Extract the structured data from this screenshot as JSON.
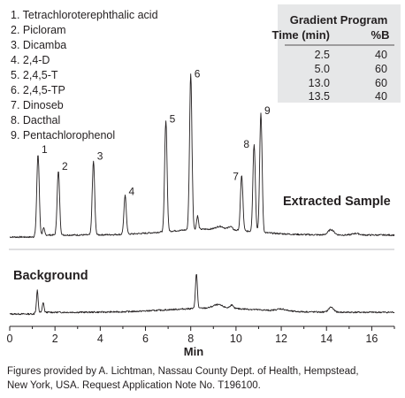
{
  "chart_data": {
    "type": "line",
    "xlabel": "Min",
    "xlim": [
      0,
      17
    ],
    "xticks": [
      "0",
      "2",
      "4",
      "6",
      "8",
      "10",
      "12",
      "14",
      "16"
    ],
    "legend": [
      "1. Tetrachloroterephthalic acid",
      "2. Picloram",
      "3. Dicamba",
      "4. 2,4-D",
      "5. 2,4,5-T",
      "6. 2,4,5-TP",
      "7. Dinoseb",
      "8. Dacthal",
      "9. Pentachlorophenol"
    ],
    "gradient_program": {
      "title": "Gradient Program",
      "headers": [
        "Time (min)",
        "%B"
      ],
      "rows": [
        [
          "2.5",
          "40"
        ],
        [
          "5.0",
          "60"
        ],
        [
          "13.0",
          "60"
        ],
        [
          "13.5",
          "40"
        ]
      ]
    },
    "series": [
      {
        "name": "Extracted Sample",
        "peaks": [
          {
            "label": "1",
            "t": 1.25,
            "h": 0.48
          },
          {
            "label": "2",
            "t": 2.15,
            "h": 0.38
          },
          {
            "label": "3",
            "t": 3.7,
            "h": 0.44
          },
          {
            "label": "4",
            "t": 5.1,
            "h": 0.23
          },
          {
            "label": "5",
            "t": 6.9,
            "h": 0.66
          },
          {
            "label": "6",
            "t": 8.0,
            "h": 0.93
          },
          {
            "label": "7",
            "t": 10.25,
            "h": 0.33
          },
          {
            "label": "8",
            "t": 10.8,
            "h": 0.52
          },
          {
            "label": "9",
            "t": 11.1,
            "h": 0.71
          }
        ]
      },
      {
        "name": "Background",
        "peaks": []
      }
    ]
  },
  "caption": {
    "line1": "Figures provided by A. Lichtman, Nassau County Dept. of Health, Hempstead,",
    "line2": "New York, USA. Request Application Note No. T196100."
  }
}
